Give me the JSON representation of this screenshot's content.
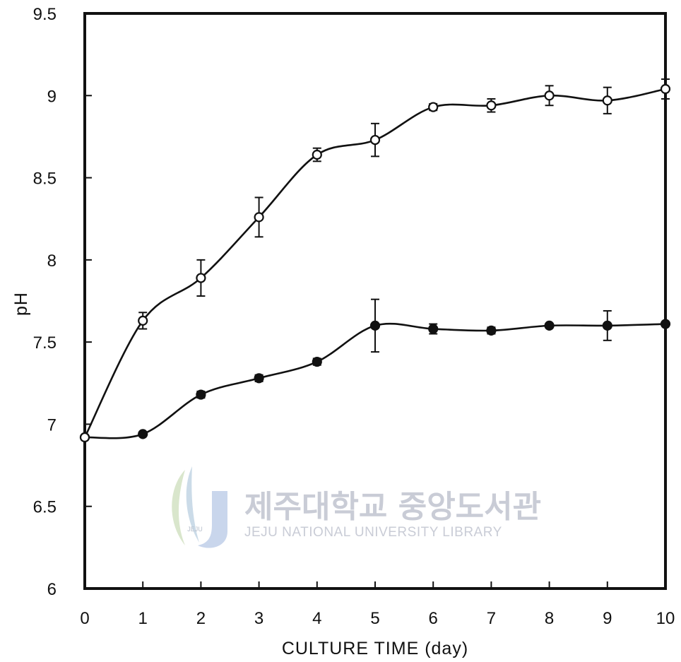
{
  "chart_data": {
    "type": "line",
    "title": "",
    "xlabel": "CULTURE  TIME (day)",
    "ylabel": "pH",
    "xlim": [
      0,
      10
    ],
    "ylim": [
      6,
      9.5
    ],
    "x_ticks": [
      0,
      1,
      2,
      3,
      4,
      5,
      6,
      7,
      8,
      9,
      10
    ],
    "y_ticks": [
      6,
      6.5,
      7,
      7.5,
      8,
      8.5,
      9,
      9.5
    ],
    "x_tick_labels": [
      "0",
      "1",
      "2",
      "3",
      "4",
      "5",
      "6",
      "7",
      "8",
      "9",
      "10"
    ],
    "y_tick_labels": [
      "6",
      "6.5",
      "7",
      "7.5",
      "8",
      "8.5",
      "9",
      "9.5"
    ],
    "grid": false,
    "legend": "none",
    "series": [
      {
        "marker": "open-circle",
        "color": "#111111",
        "x": [
          0,
          1,
          2,
          3,
          4,
          5,
          6,
          7,
          8,
          9,
          10
        ],
        "y": [
          6.92,
          7.63,
          7.89,
          8.26,
          8.64,
          8.73,
          8.93,
          8.94,
          9.0,
          8.97,
          9.04
        ],
        "error": [
          0,
          0.05,
          0.11,
          0.12,
          0.04,
          0.1,
          0.02,
          0.04,
          0.06,
          0.08,
          0.06
        ]
      },
      {
        "marker": "filled-circle",
        "color": "#111111",
        "x": [
          0,
          1,
          2,
          3,
          4,
          5,
          6,
          7,
          8,
          9,
          10
        ],
        "y": [
          6.92,
          6.94,
          7.18,
          7.28,
          7.38,
          7.6,
          7.58,
          7.57,
          7.6,
          7.6,
          7.61
        ],
        "error": [
          0,
          0,
          0.02,
          0.02,
          0.02,
          0.16,
          0.03,
          0.02,
          0,
          0.09,
          0
        ]
      }
    ]
  },
  "watermark": {
    "korean": "제주대학교 중앙도서관",
    "english": "JEJU NATIONAL UNIVERSITY  LIBRARY",
    "logo_text": "JEJU"
  }
}
